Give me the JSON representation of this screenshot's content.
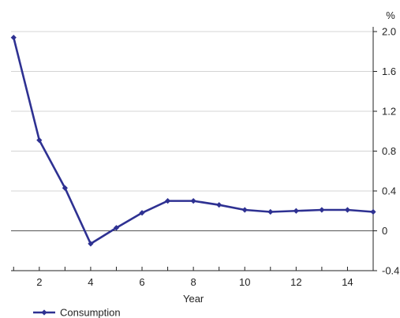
{
  "chart_data": {
    "type": "line",
    "xlabel": "Year",
    "yunit": "%",
    "x": [
      1,
      2,
      3,
      4,
      5,
      6,
      7,
      8,
      9,
      10,
      11,
      12,
      13,
      14,
      15
    ],
    "series": [
      {
        "name": "Consumption",
        "color": "#2E3192",
        "values": [
          1.94,
          0.91,
          0.43,
          -0.13,
          0.03,
          0.18,
          0.3,
          0.3,
          0.26,
          0.21,
          0.19,
          0.2,
          0.21,
          0.21,
          0.19
        ]
      }
    ],
    "xticks": [
      "2",
      "4",
      "6",
      "8",
      "10",
      "12",
      "14"
    ],
    "yticks": [
      "-0.4",
      "0",
      "0.4",
      "0.8",
      "1.2",
      "1.6",
      "2.0"
    ],
    "xlim": [
      0.9,
      15
    ],
    "ylim": [
      -0.4,
      2.0
    ],
    "grid": true,
    "y_axis_position": "right",
    "legend_position": "bottom-left"
  }
}
